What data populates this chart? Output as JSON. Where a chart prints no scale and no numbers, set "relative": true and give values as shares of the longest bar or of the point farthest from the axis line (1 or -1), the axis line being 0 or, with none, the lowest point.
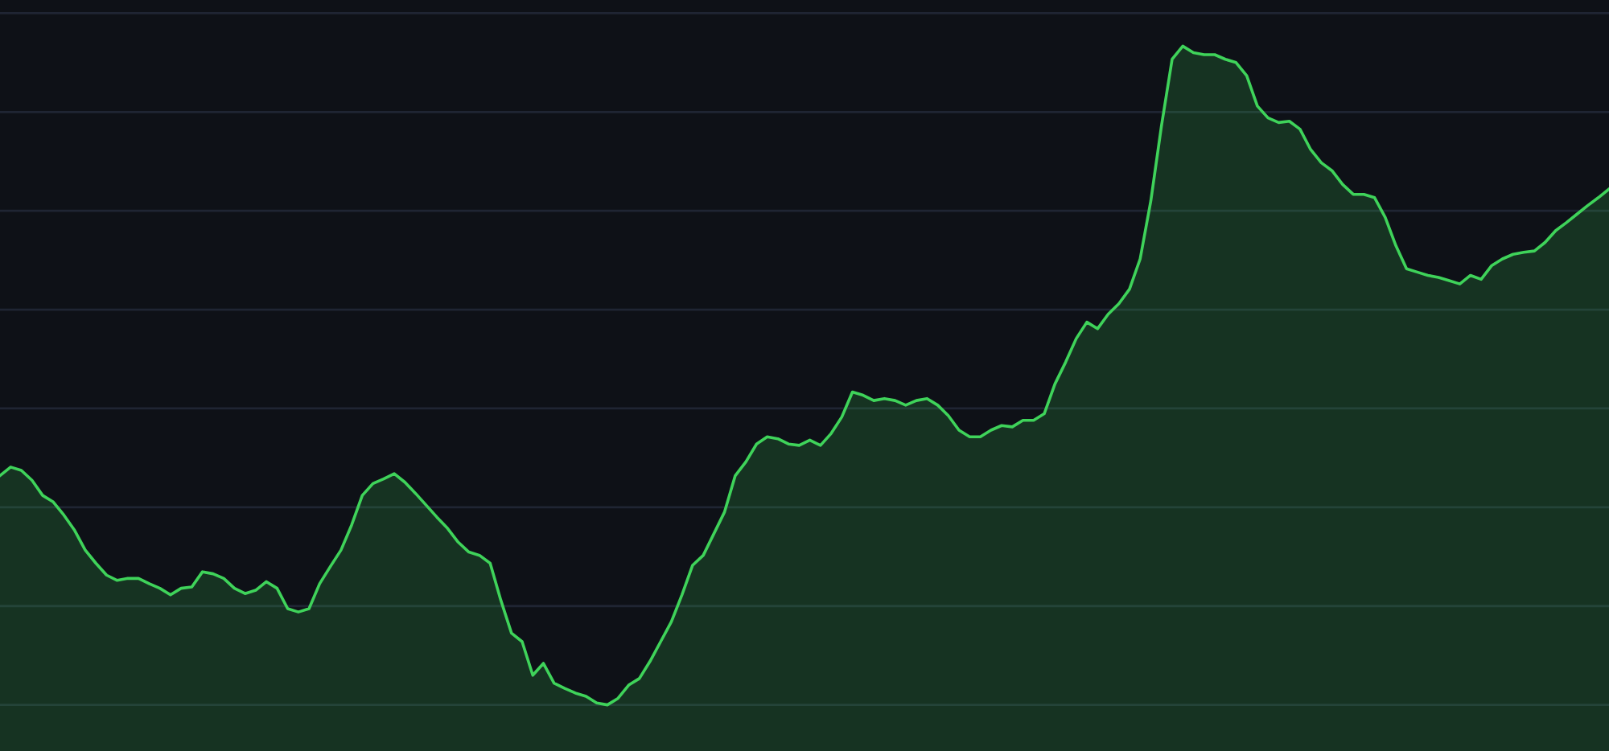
{
  "chart_data": {
    "type": "area",
    "relative": true,
    "grid": "y",
    "categories": [
      null,
      null,
      null,
      null,
      null,
      null,
      null,
      null,
      null,
      null,
      null,
      null,
      null,
      null,
      null,
      null,
      null,
      null,
      null,
      null,
      null,
      null,
      null,
      null,
      null,
      null,
      null,
      null,
      null,
      null,
      null,
      null,
      null,
      null,
      null,
      null,
      null,
      null,
      null,
      null,
      null,
      null,
      null,
      null,
      null,
      null,
      null,
      null,
      null,
      null,
      null,
      null,
      null,
      null,
      null,
      null,
      null,
      null,
      null,
      null,
      null,
      null,
      null,
      null,
      null,
      null,
      null,
      null,
      null,
      null,
      null,
      null,
      null,
      null,
      null,
      null,
      null,
      null,
      null,
      null,
      null,
      null,
      null,
      null,
      null,
      null,
      null,
      null,
      null,
      null,
      null,
      null,
      null,
      null,
      null,
      null,
      null,
      null,
      null,
      null,
      null,
      null,
      null,
      null,
      null,
      null,
      null,
      null,
      null,
      null,
      null,
      null,
      null,
      null,
      null,
      null,
      null,
      null,
      null,
      null,
      null,
      null,
      null,
      null,
      null,
      null,
      null,
      null,
      null,
      null,
      null,
      null,
      null,
      null,
      null,
      null,
      null,
      null,
      null,
      null,
      null,
      null,
      null,
      null,
      null,
      null,
      null,
      null,
      null,
      null,
      null,
      null
    ],
    "series": [
      {
        "color": "#3fd35a",
        "values": [
          0.348,
          0.361,
          0.356,
          0.341,
          0.318,
          0.308,
          0.288,
          0.265,
          0.235,
          0.215,
          0.197,
          0.189,
          0.192,
          0.192,
          0.184,
          0.177,
          0.167,
          0.177,
          0.179,
          0.202,
          0.199,
          0.192,
          0.177,
          0.169,
          0.174,
          0.187,
          0.177,
          0.146,
          0.141,
          0.146,
          0.184,
          0.21,
          0.235,
          0.273,
          0.318,
          0.336,
          0.343,
          0.351,
          0.338,
          0.321,
          0.303,
          0.285,
          0.268,
          0.247,
          0.232,
          0.227,
          0.215,
          0.159,
          0.109,
          0.096,
          0.045,
          0.063,
          0.033,
          0.025,
          0.018,
          0.013,
          0.003,
          0,
          0.01,
          0.03,
          0.04,
          0.066,
          0.096,
          0.126,
          0.167,
          0.212,
          0.227,
          0.26,
          0.293,
          0.348,
          0.369,
          0.396,
          0.407,
          0.404,
          0.396,
          0.394,
          0.402,
          0.394,
          0.412,
          0.437,
          0.475,
          0.47,
          0.462,
          0.465,
          0.462,
          0.455,
          0.462,
          0.465,
          0.455,
          0.439,
          0.417,
          0.407,
          0.407,
          0.417,
          0.424,
          0.422,
          0.432,
          0.432,
          0.442,
          0.487,
          0.52,
          0.556,
          0.581,
          0.571,
          0.593,
          0.609,
          0.631,
          0.677,
          0.765,
          0.879,
          0.98,
          1,
          0.99,
          0.987,
          0.987,
          0.98,
          0.975,
          0.955,
          0.909,
          0.891,
          0.884,
          0.886,
          0.874,
          0.843,
          0.823,
          0.811,
          0.79,
          0.775,
          0.775,
          0.77,
          0.74,
          0.697,
          0.662,
          0.657,
          0.652,
          0.649,
          0.644,
          0.639,
          0.652,
          0.646,
          0.667,
          0.677,
          0.684,
          0.687,
          0.689,
          0.702,
          0.72,
          0.732,
          0.745,
          0.758,
          0.77,
          0.783
        ]
      }
    ]
  }
}
